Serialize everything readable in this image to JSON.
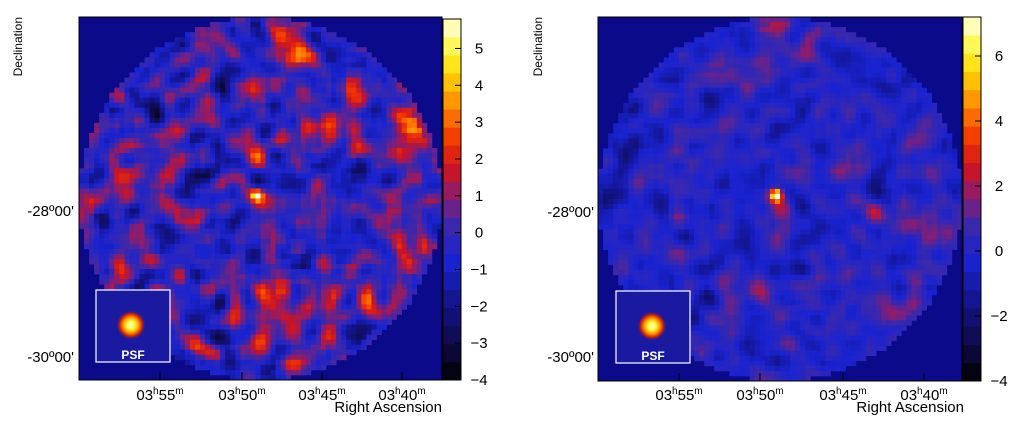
{
  "chart_data": [
    {
      "type": "heatmap",
      "xlabel": "Right Ascension",
      "ylabel": "Declination",
      "x_ticks": [
        {
          "h": "03",
          "m": "55"
        },
        {
          "h": "03",
          "m": "50"
        },
        {
          "h": "03",
          "m": "45"
        },
        {
          "h": "03",
          "m": "40"
        }
      ],
      "y_ticks": [
        "-28º00'",
        "-30º00'"
      ],
      "colorbar": {
        "min": -4,
        "max": 5.8,
        "ticks": [
          5,
          4,
          3,
          2,
          1,
          0,
          -1,
          -2,
          -3,
          -4
        ],
        "levels": 20
      },
      "inset_label": "PSF",
      "bright_spot": {
        "ra": "03h49m",
        "dec": "-27º55'",
        "peak": 5.5
      },
      "legend_position": "none"
    },
    {
      "type": "heatmap",
      "xlabel": "Right Ascension",
      "ylabel": "Declination",
      "x_ticks": [
        {
          "h": "03",
          "m": "55"
        },
        {
          "h": "03",
          "m": "50"
        },
        {
          "h": "03",
          "m": "45"
        },
        {
          "h": "03",
          "m": "40"
        }
      ],
      "y_ticks": [
        "-28º00'",
        "-30º00'"
      ],
      "colorbar": {
        "min": -4,
        "max": 7.2,
        "ticks": [
          6,
          4,
          2,
          0,
          -2,
          -4
        ],
        "levels": 20
      },
      "inset_label": "PSF",
      "bright_spot": {
        "ra": "03h49m",
        "dec": "-27º55'",
        "peak": 7.0
      },
      "legend_position": "none"
    }
  ]
}
